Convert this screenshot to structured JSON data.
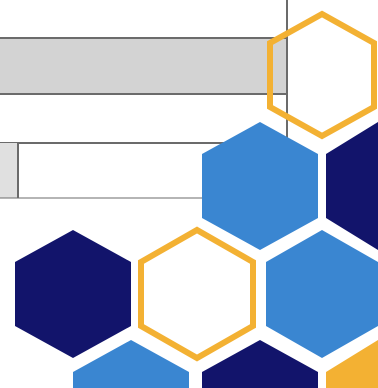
{
  "colors": {
    "background": "#ffffff",
    "grid_line": "#6b6b6b",
    "grid_fill": "#d3d3d3",
    "grid_fill_light": "#e0e0e0",
    "navy": "#12146b",
    "blue": "#3a86d1",
    "gold": "#f3b133",
    "white": "#ffffff"
  },
  "hexagons": [
    {
      "name": "hex-outline-gold-top-right",
      "style": "outline",
      "color": "gold"
    },
    {
      "name": "hex-blue-mid",
      "style": "filled",
      "color": "blue"
    },
    {
      "name": "hex-navy-right-edge",
      "style": "filled",
      "color": "navy"
    },
    {
      "name": "hex-navy-left",
      "style": "filled",
      "color": "navy"
    },
    {
      "name": "hex-outline-gold-center",
      "style": "outline",
      "color": "gold"
    },
    {
      "name": "hex-blue-right",
      "style": "filled",
      "color": "blue"
    },
    {
      "name": "hex-blue-bottom-left",
      "style": "filled",
      "color": "blue"
    },
    {
      "name": "hex-navy-bottom",
      "style": "filled",
      "color": "navy"
    },
    {
      "name": "hex-gold-bottom-right",
      "style": "filled",
      "color": "gold"
    }
  ]
}
